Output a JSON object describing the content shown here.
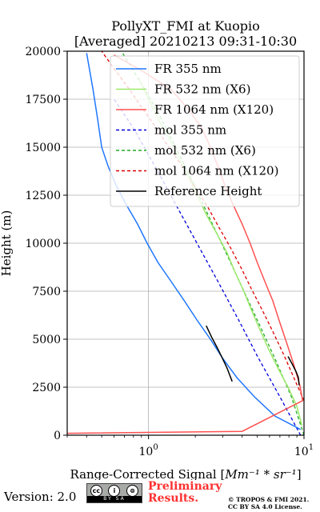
{
  "chart_data": {
    "type": "line",
    "title": "PollyXT_FMI at Kuopio",
    "subtitle": "[Averaged] 20210213 09:31-10:30",
    "xlabel_text": "Range-Corrected Signal [",
    "xlabel_math": "Mm⁻¹ * sr⁻¹",
    "xlabel_close": "]",
    "ylabel": "Height (m)",
    "x_scale": "log",
    "xlim": [
      0.3,
      10
    ],
    "ylim": [
      0,
      20000
    ],
    "x_ticks": [
      {
        "value": 1,
        "base": "10",
        "exp": "0"
      },
      {
        "value": 10,
        "base": "10",
        "exp": "1"
      }
    ],
    "y_ticks": [
      0,
      2500,
      5000,
      7500,
      10000,
      12500,
      15000,
      17500,
      20000
    ],
    "grid": true,
    "legend_position": "upper-right",
    "series": [
      {
        "name": "FR 355 nm",
        "color": "#1f77ff",
        "style": "solid",
        "x": [
          9.5,
          6.5,
          4.8,
          3.7,
          3.0,
          2.5,
          2.05,
          1.7,
          1.4,
          1.15,
          0.98,
          0.85,
          0.72,
          0.62,
          0.55,
          0.5,
          0.47,
          0.44,
          0.4
        ],
        "y": [
          300,
          1000,
          2000,
          3000,
          4000,
          5000,
          6000,
          7000,
          8000,
          9000,
          10000,
          11000,
          12000,
          13000,
          14000,
          15000,
          16500,
          18000,
          19900
        ]
      },
      {
        "name": "FR 532 nm (X6)",
        "color": "#9be86a",
        "style": "solid",
        "x": [
          9.7,
          9.0,
          7.9,
          6.8,
          5.9,
          5.2,
          4.6,
          4.1,
          3.6,
          3.2,
          2.75,
          2.35,
          2.05,
          1.8,
          1.55,
          1.35,
          1.15,
          1.0,
          0.87
        ],
        "y": [
          500,
          1500,
          2500,
          3500,
          4500,
          5500,
          6500,
          7500,
          8500,
          9500,
          10500,
          11500,
          12500,
          13500,
          14500,
          15500,
          16500,
          17500,
          18500
        ]
      },
      {
        "name": "FR 1064 nm (X120)",
        "color": "#ff5050",
        "style": "solid",
        "x": [
          0.3,
          4.0,
          9.8,
          9.4,
          8.5,
          7.6,
          6.9,
          6.3,
          5.6,
          5.0,
          4.5,
          4.0,
          3.5,
          3.1,
          2.8,
          2.5,
          2.2,
          1.8,
          1.4,
          0.9,
          0.6
        ],
        "y": [
          100,
          200,
          1800,
          2600,
          3800,
          5000,
          6000,
          7000,
          8000,
          9000,
          10000,
          11000,
          12000,
          13000,
          14000,
          15000,
          16000,
          17000,
          18000,
          19000,
          19800
        ]
      },
      {
        "name": "mol 355 nm",
        "color": "#0000dd",
        "style": "dashed",
        "x": [
          9.5,
          7.0,
          5.1,
          3.8,
          2.8,
          2.05,
          1.5,
          1.1,
          0.8,
          0.6
        ],
        "y": [
          0,
          2000,
          4000,
          6000,
          8000,
          10000,
          12000,
          14000,
          16000,
          17500
        ]
      },
      {
        "name": "mol 532 nm (X6)",
        "color": "#22aa22",
        "style": "dashed",
        "x": [
          10.0,
          8.3,
          6.5,
          5.0,
          3.85,
          2.95,
          2.25,
          1.72,
          1.3,
          0.95,
          0.67
        ],
        "y": [
          0,
          2000,
          4000,
          6000,
          8000,
          10000,
          12000,
          14000,
          16000,
          18000,
          20000
        ]
      },
      {
        "name": "mol 1064 nm (X120)",
        "color": "#dd0000",
        "style": "dashed",
        "x": [
          10.0,
          8.6,
          7.4,
          6.3,
          5.4,
          4.6,
          3.95,
          3.35,
          2.85,
          2.4,
          2.0,
          1.65,
          1.35,
          1.1,
          0.9,
          0.74,
          0.6,
          0.5
        ],
        "y": [
          1800,
          3000,
          4200,
          5400,
          6500,
          7600,
          8700,
          9800,
          10800,
          11900,
          12900,
          14000,
          15000,
          16100,
          17100,
          18100,
          19100,
          20000
        ]
      },
      {
        "name": "Reference Height",
        "color": "#000000",
        "style": "solid",
        "x": [
          2.35,
          2.55,
          2.75,
          2.95,
          3.2,
          3.45
        ],
        "y": [
          5700,
          5100,
          4600,
          4100,
          3500,
          2800
        ]
      }
    ],
    "reference_height_2": {
      "x": [
        7.9,
        8.4,
        8.9,
        9.2,
        9.3
      ],
      "y": [
        4100,
        3700,
        3300,
        3000,
        2600
      ]
    }
  },
  "footer": {
    "version": "Version: 2.0",
    "cc_icons": [
      "cc",
      "i",
      "⊜"
    ],
    "cc_label": "BY    SA",
    "preliminary_line1": "Preliminary",
    "preliminary_line2": "Results.",
    "copyright_line1": "© TROPOS & FMI 2021.",
    "copyright_line2": "CC BY SA 4.0 License."
  }
}
